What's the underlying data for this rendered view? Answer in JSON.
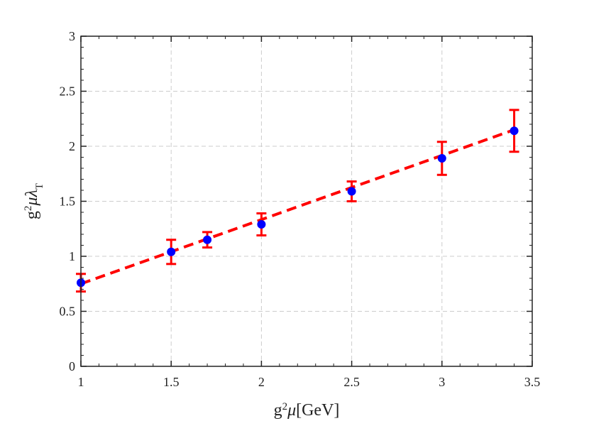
{
  "chart_data": {
    "type": "scatter",
    "xlim": [
      1,
      3.5
    ],
    "ylim": [
      0,
      3
    ],
    "xticks": [
      "1",
      "1.5",
      "2",
      "2.5",
      "3",
      "3.5"
    ],
    "yticks": [
      "0",
      "0.5",
      "1",
      "1.5",
      "2",
      "2.5",
      "3"
    ],
    "xlabel": {
      "base": "g",
      "sup": "2",
      "mid": "μ",
      "tail": "[GeV]"
    },
    "ylabel": {
      "base": "g",
      "sup": "2",
      "mid": "μλ",
      "sub": "T"
    },
    "grid": true,
    "series": [
      {
        "kind": "points_with_errorbars",
        "marker_color": "#0000ff",
        "errorbar_color": "#ff0000",
        "points": [
          {
            "x": 1.0,
            "y": 0.76,
            "err": 0.08
          },
          {
            "x": 1.5,
            "y": 1.04,
            "err": 0.11
          },
          {
            "x": 1.7,
            "y": 1.15,
            "err": 0.07
          },
          {
            "x": 2.0,
            "y": 1.29,
            "err": 0.1
          },
          {
            "x": 2.5,
            "y": 1.59,
            "err": 0.09
          },
          {
            "x": 3.0,
            "y": 1.89,
            "err": 0.15
          },
          {
            "x": 3.4,
            "y": 2.14,
            "err": 0.19
          }
        ]
      },
      {
        "kind": "fit_line",
        "style": "dashed",
        "color": "#ff0000",
        "x": [
          1.0,
          3.4
        ],
        "y": [
          0.75,
          2.15
        ]
      }
    ]
  }
}
